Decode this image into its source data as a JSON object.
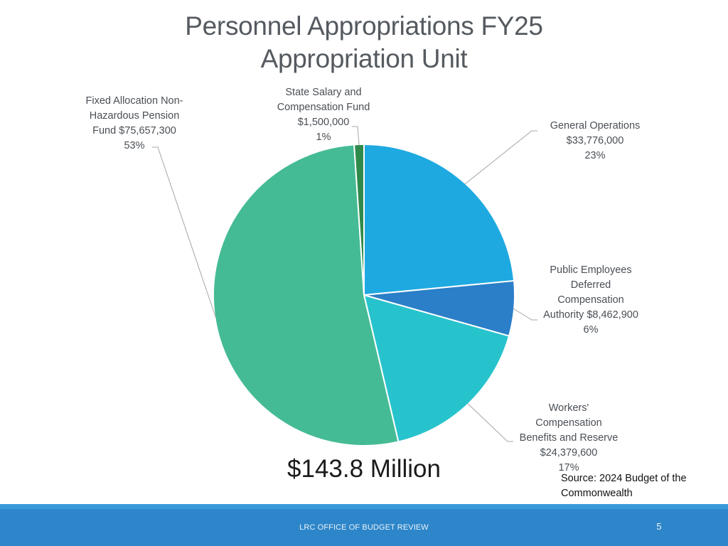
{
  "slide": {
    "title_line1": "Personnel Appropriations FY25",
    "title_line2": "Appropriation Unit",
    "total": "$143.8 Million",
    "source": "Source: 2024 Budget of the Commonwealth",
    "footer": "LRC OFFICE OF BUDGET REVIEW",
    "page_number": "5"
  },
  "colors": {
    "general_operations": "#1fa9e1",
    "public_employees_deferred": "#2a7fc8",
    "workers_compensation": "#27c3cd",
    "fixed_allocation": "#45bb95",
    "state_salary": "#2e8a4b",
    "footer_band": "#2d86c9"
  },
  "chart_data": {
    "type": "pie",
    "title": "Personnel Appropriations FY25 Appropriation Unit",
    "unit": "$",
    "start_angle_deg": 0,
    "direction": "clockwise",
    "slices": [
      {
        "name": "General Operations",
        "value": 33776000,
        "percent": 23,
        "label": "General Operations\n$33,776,000\n23%",
        "color": "#1fa9e1"
      },
      {
        "name": "Public Employees Deferred Compensation Authority",
        "value": 8462900,
        "percent": 6,
        "label": "Public Employees\nDeferred\nCompensation\nAuthority $8,462,900\n6%",
        "color": "#2a7fc8"
      },
      {
        "name": "Workers' Compensation Benefits and Reserve",
        "value": 24379600,
        "percent": 17,
        "label": "Workers'\nCompensation\nBenefits and Reserve\n$24,379,600\n17%",
        "color": "#27c3cd"
      },
      {
        "name": "Fixed Allocation Non-Hazardous Pension Fund",
        "value": 75657300,
        "percent": 53,
        "label": "Fixed Allocation Non-\nHazardous Pension\nFund $75,657,300\n53%",
        "color": "#45bb95"
      },
      {
        "name": "State Salary and Compensation Fund",
        "value": 1500000,
        "percent": 1,
        "label": "State Salary and\nCompensation Fund\n$1,500,000\n1%",
        "color": "#2e8a4b"
      }
    ],
    "legend": "none"
  }
}
